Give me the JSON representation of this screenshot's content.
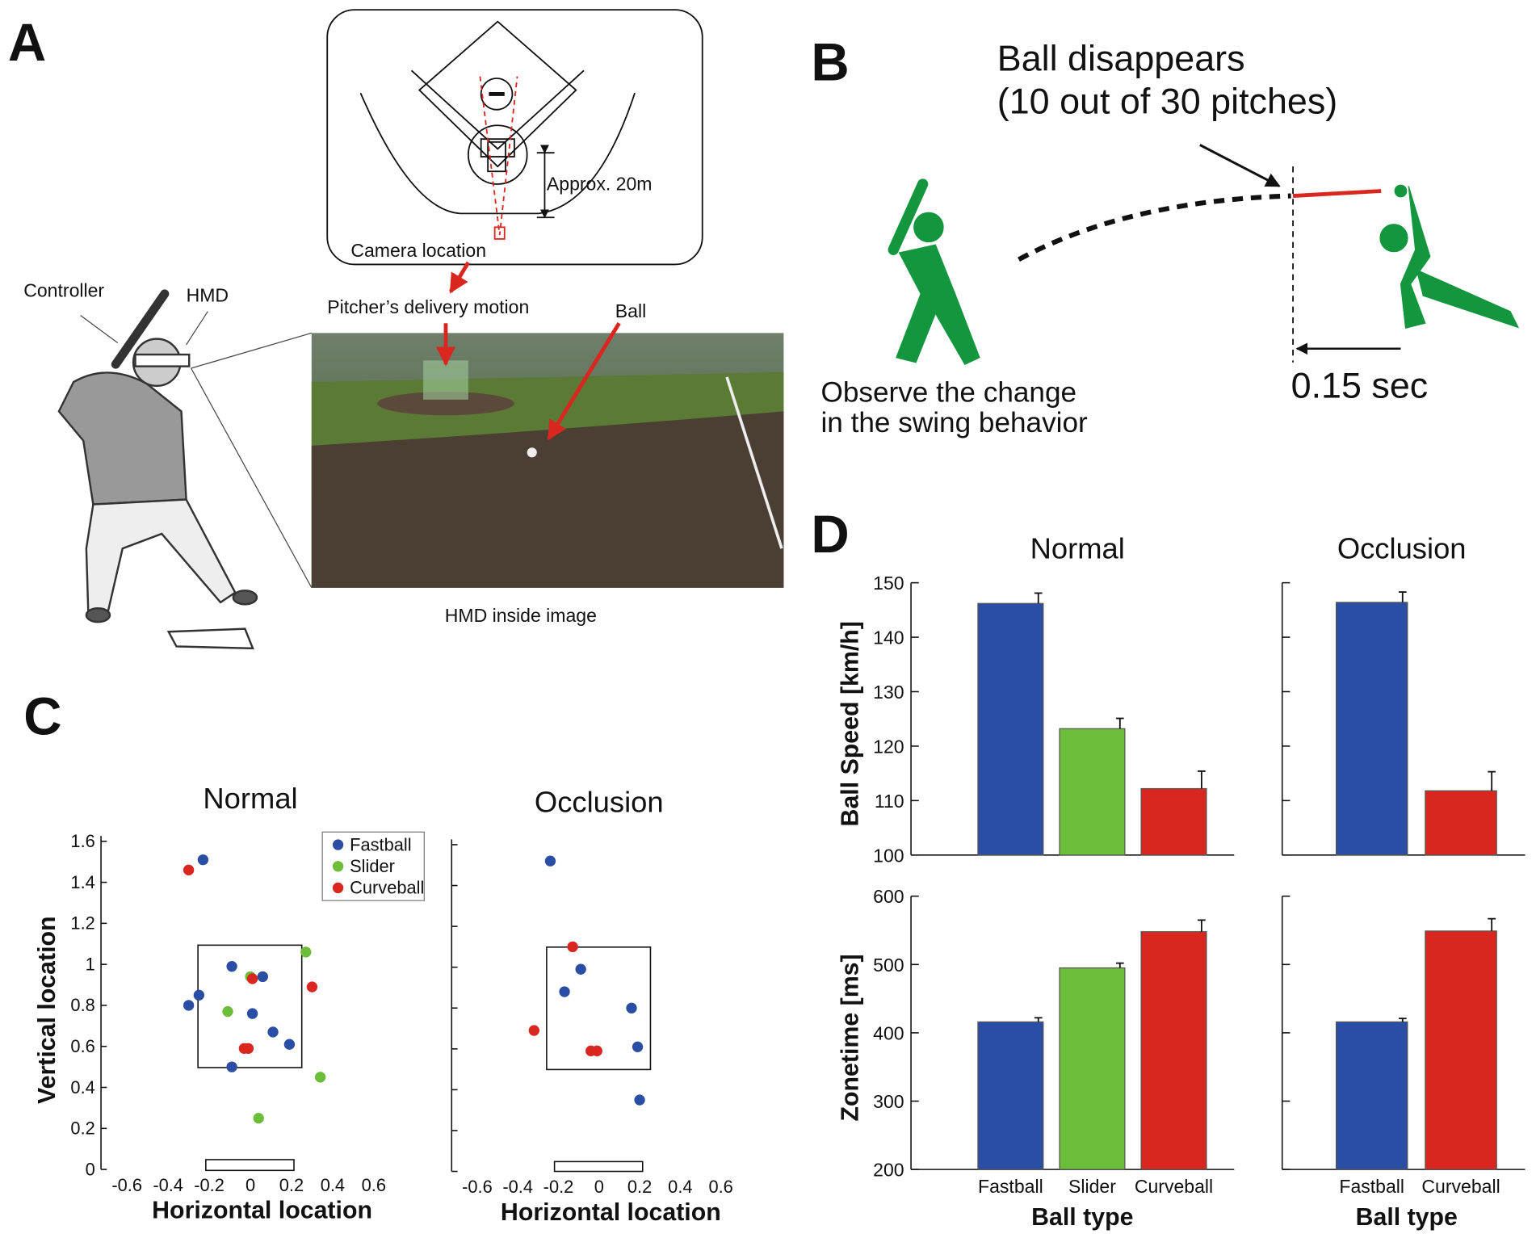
{
  "panels": {
    "a": "A",
    "b": "B",
    "c": "C",
    "d": "D"
  },
  "panel_a": {
    "controller": "Controller",
    "hmd": "HMD",
    "delivery": "Pitcher’s delivery motion",
    "ball": "Ball",
    "caption": "HMD inside image",
    "camera": "Camera location",
    "distance": "Approx. 20m"
  },
  "panel_b": {
    "headline": [
      "Ball disappears",
      "(10 out of 30 pitches)"
    ],
    "caption": [
      "Observe the change",
      "in the swing behavior"
    ],
    "time": "0.15 sec"
  },
  "chart_data": [
    {
      "type": "scatter",
      "title": "Normal",
      "xlabel": "Horizontal location",
      "ylabel": "Vertical location",
      "xlim": [
        -0.75,
        0.75
      ],
      "xticks": [
        -0.6,
        -0.4,
        -0.2,
        0,
        0.2,
        0.4,
        0.6
      ],
      "ylim": [
        0,
        1.65
      ],
      "yticks": [
        0,
        0.2,
        0.4,
        0.6,
        0.8,
        1,
        1.2,
        1.4,
        1.6
      ],
      "legend": "upper right",
      "series": [
        {
          "name": "Fastball",
          "color": "#2a4ea3",
          "x": [
            -0.23,
            -0.3,
            -0.25,
            -0.09,
            0.06,
            0.01,
            0.11,
            0.19,
            -0.09
          ],
          "values": [
            1.51,
            0.8,
            0.85,
            0.99,
            0.94,
            0.76,
            0.67,
            0.61,
            0.5
          ]
        },
        {
          "name": "Slider",
          "color": "#6bbd3a",
          "x": [
            0.27,
            -0.11,
            0,
            0.34,
            0.04
          ],
          "values": [
            1.06,
            0.77,
            0.94,
            0.45,
            0.25
          ]
        },
        {
          "name": "Curveball",
          "color": "#d9261f",
          "x": [
            -0.3,
            0.01,
            0.3,
            -0.03,
            -0.01
          ],
          "values": [
            1.46,
            0.93,
            0.89,
            0.59,
            0.59
          ]
        }
      ]
    },
    {
      "type": "scatter",
      "title": "Occlusion",
      "xlabel": "Horizontal location",
      "xlim": [
        -0.75,
        0.75
      ],
      "xticks": [
        -0.6,
        -0.4,
        -0.2,
        0,
        0.2,
        0.4,
        0.6
      ],
      "ylim": [
        0,
        1.65
      ],
      "yticks": [
        0,
        0.2,
        0.4,
        0.6,
        0.8,
        1,
        1.2,
        1.4,
        1.6
      ],
      "show_ytick_labels": false,
      "series": [
        {
          "color": "#2a4ea3",
          "x": [
            -0.24,
            -0.09,
            -0.17,
            0.16,
            0.19,
            0.2
          ],
          "values": [
            1.52,
            0.99,
            0.88,
            0.8,
            0.61,
            0.35
          ]
        },
        {
          "color": "#d9261f",
          "x": [
            -0.13,
            -0.32,
            -0.04,
            -0.01
          ],
          "values": [
            1.1,
            0.69,
            0.59,
            0.59
          ]
        }
      ]
    },
    {
      "type": "bar",
      "title": "Normal",
      "ylabel": "Ball Speed  [km/h]",
      "ylim": [
        100,
        150
      ],
      "yticks": [
        100,
        110,
        120,
        130,
        140,
        150
      ],
      "values": [
        146.2,
        123.2,
        112.2
      ],
      "errors": [
        1.9,
        1.9,
        3.2
      ],
      "colors": [
        "#2a4ea3",
        "#6bbd3a",
        "#d9261f"
      ]
    },
    {
      "type": "bar",
      "title": "Occlusion",
      "ylim": [
        100,
        150
      ],
      "yticks": [
        100,
        110,
        120,
        130,
        140,
        150
      ],
      "show_ytick_labels": false,
      "values": [
        146.4,
        111.8
      ],
      "errors": [
        1.9,
        3.5
      ],
      "colors": [
        "#2a4ea3",
        "#d9261f"
      ]
    },
    {
      "type": "bar",
      "ylabel": "Zonetime  [ms]",
      "xlabel": "Ball type",
      "categories": [
        "Fastball",
        "Slider",
        "Curveball"
      ],
      "ylim": [
        200,
        600
      ],
      "yticks": [
        200,
        300,
        400,
        500,
        600
      ],
      "values": [
        416,
        495,
        548
      ],
      "errors": [
        6,
        7,
        17
      ],
      "colors": [
        "#2a4ea3",
        "#6bbd3a",
        "#d9261f"
      ]
    },
    {
      "type": "bar",
      "xlabel": "Ball type",
      "categories": [
        "Fastball",
        "Curveball"
      ],
      "ylim": [
        200,
        600
      ],
      "yticks": [
        200,
        300,
        400,
        500,
        600
      ],
      "show_ytick_labels": false,
      "values": [
        416,
        549
      ],
      "errors": [
        5,
        18
      ],
      "colors": [
        "#2a4ea3",
        "#d9261f"
      ]
    }
  ]
}
